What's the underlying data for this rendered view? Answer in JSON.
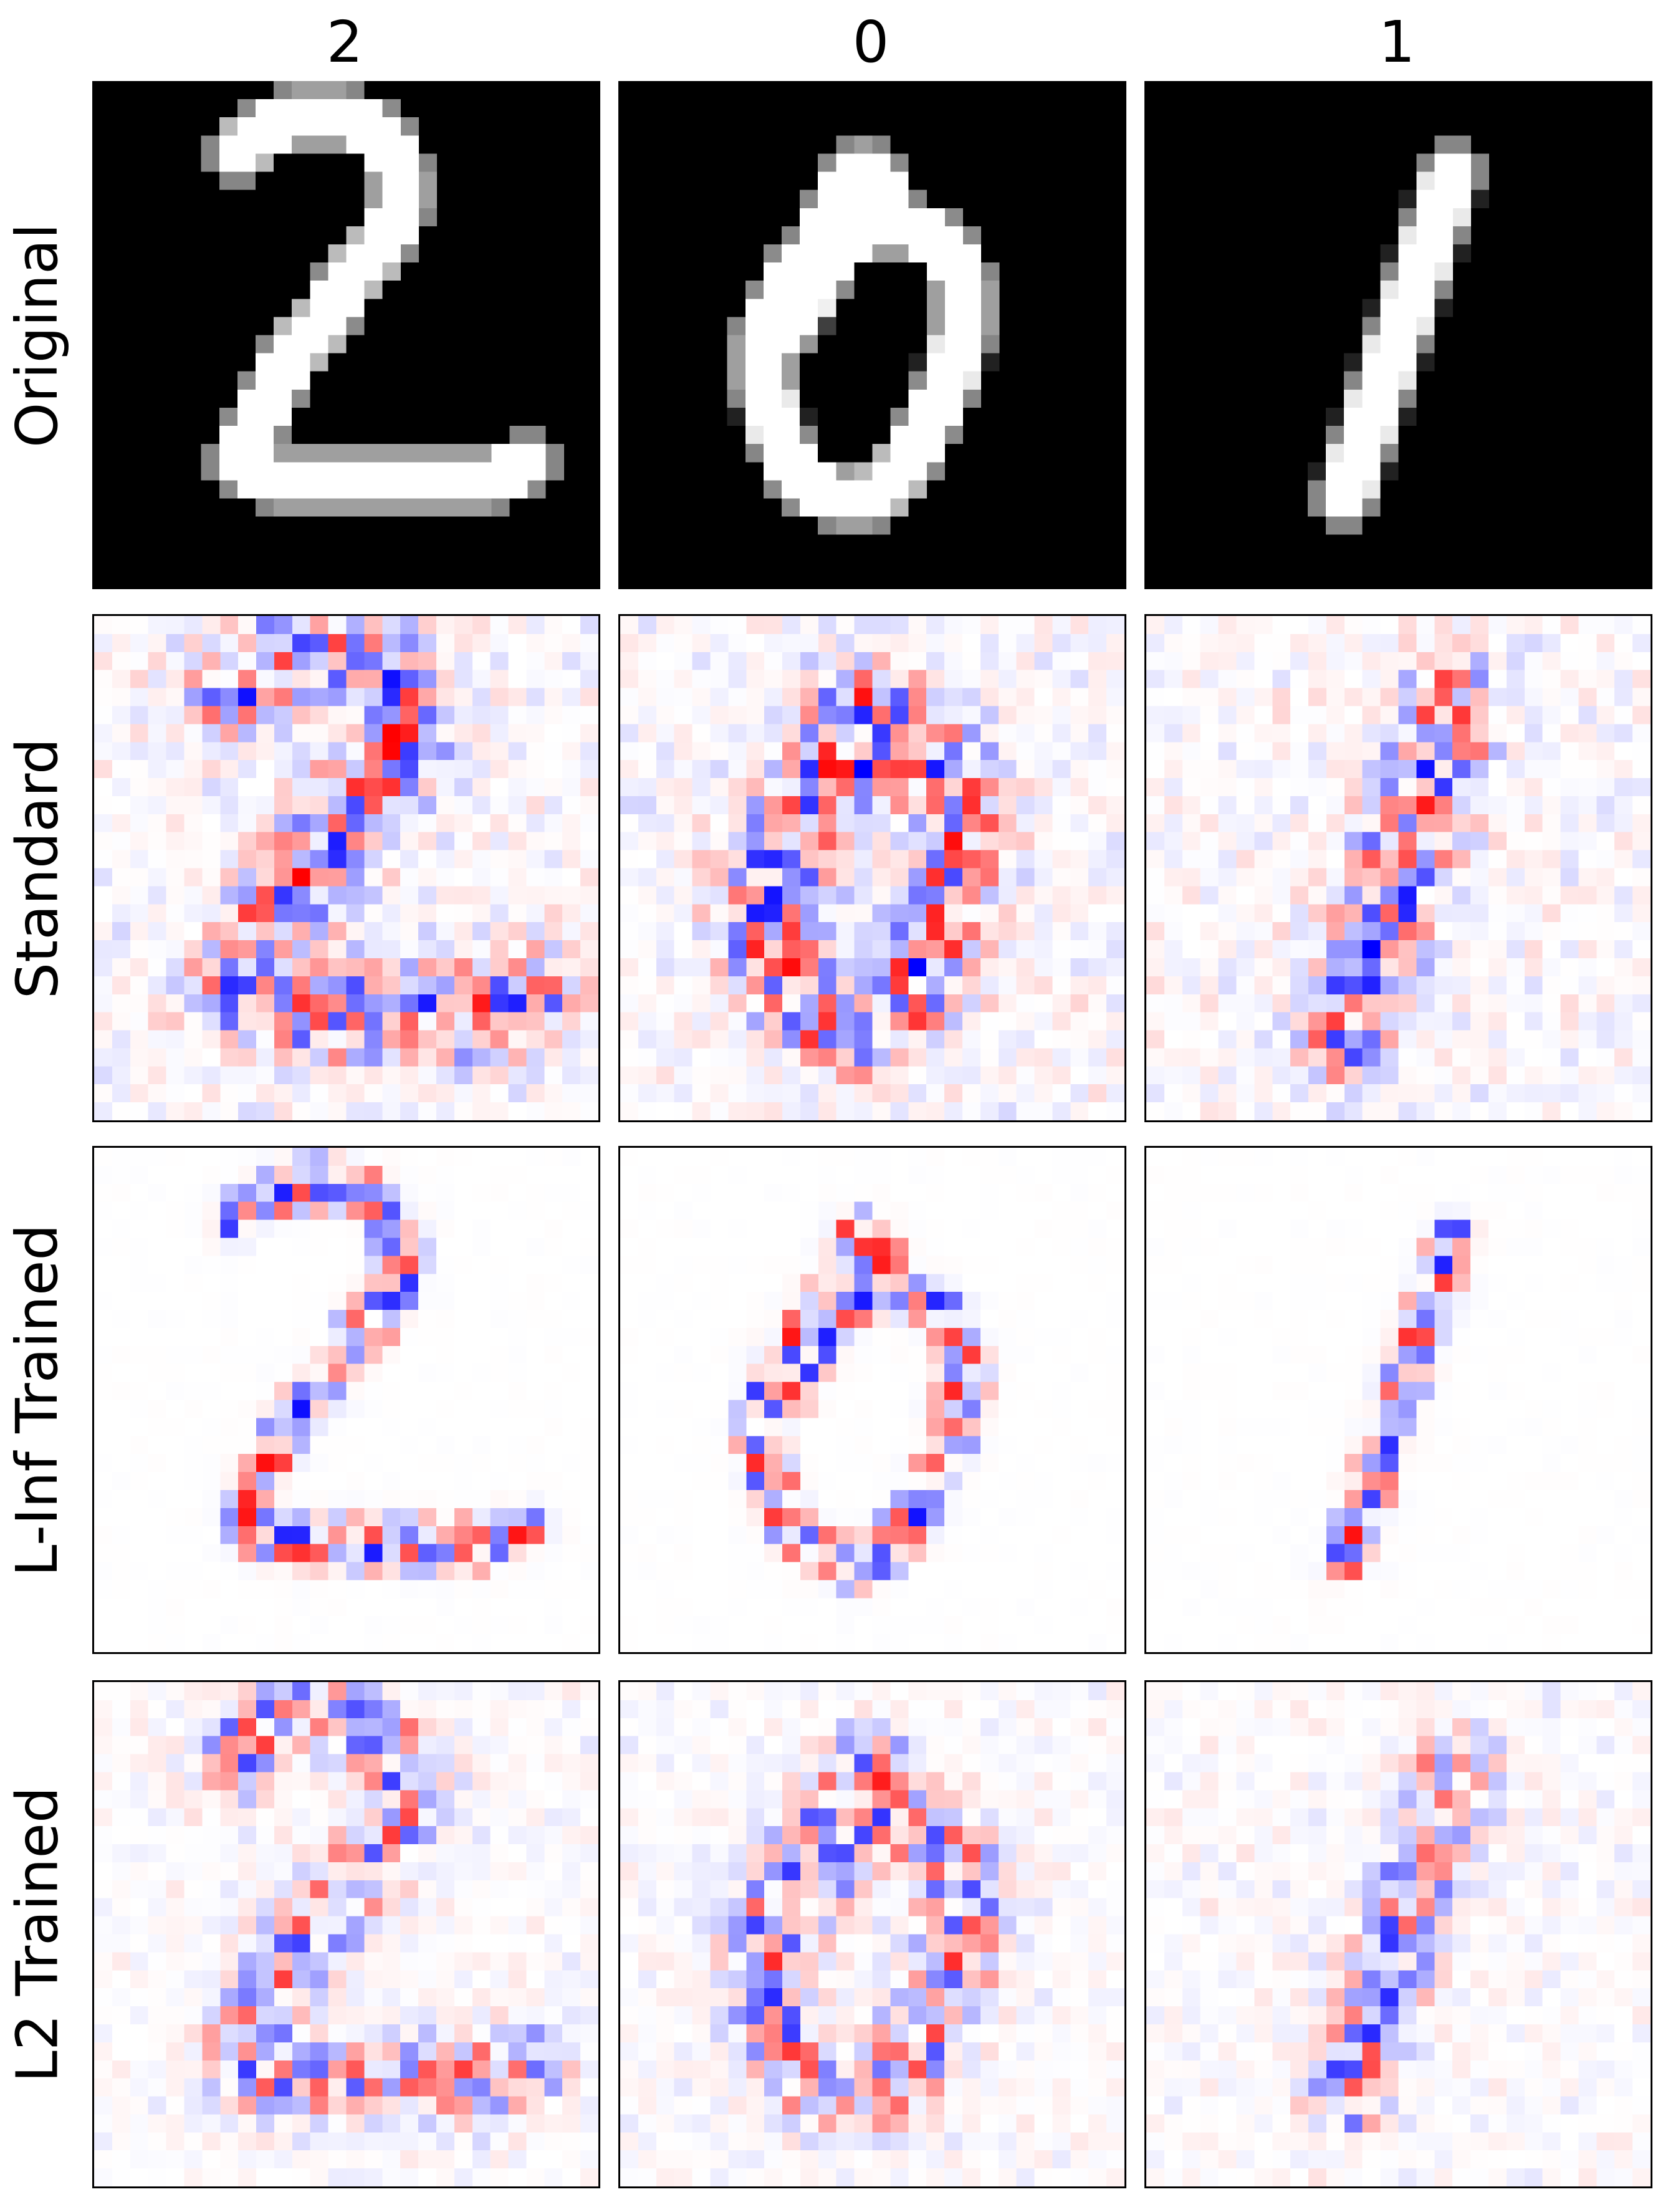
{
  "column_titles": [
    "2",
    "0",
    "1"
  ],
  "row_labels": [
    "Original",
    "Standard",
    "L-Inf Trained",
    "L2 Trained"
  ],
  "colors": {
    "negative": "#0000ff",
    "neutral": "#ffffff",
    "positive": "#ff0000",
    "image_low": "#000000",
    "image_high": "#ffffff"
  },
  "grid_size": 28,
  "panels": [
    {
      "row": 0,
      "col": 0,
      "kind": "grayscale-image",
      "depicts": "handwritten digit 2"
    },
    {
      "row": 0,
      "col": 1,
      "kind": "grayscale-image",
      "depicts": "handwritten digit 0"
    },
    {
      "row": 0,
      "col": 2,
      "kind": "grayscale-image",
      "depicts": "handwritten digit 1"
    },
    {
      "row": 1,
      "col": 0,
      "kind": "signed-heatmap",
      "depicts": "digit 2"
    },
    {
      "row": 1,
      "col": 1,
      "kind": "signed-heatmap",
      "depicts": "digit 0"
    },
    {
      "row": 1,
      "col": 2,
      "kind": "signed-heatmap",
      "depicts": "digit 1"
    },
    {
      "row": 2,
      "col": 0,
      "kind": "signed-heatmap",
      "depicts": "digit 2"
    },
    {
      "row": 2,
      "col": 1,
      "kind": "signed-heatmap",
      "depicts": "digit 0"
    },
    {
      "row": 2,
      "col": 2,
      "kind": "signed-heatmap",
      "depicts": "digit 1"
    },
    {
      "row": 3,
      "col": 0,
      "kind": "signed-heatmap",
      "depicts": "digit 2"
    },
    {
      "row": 3,
      "col": 1,
      "kind": "signed-heatmap",
      "depicts": "digit 0"
    },
    {
      "row": 3,
      "col": 2,
      "kind": "signed-heatmap",
      "depicts": "digit 1"
    }
  ]
}
